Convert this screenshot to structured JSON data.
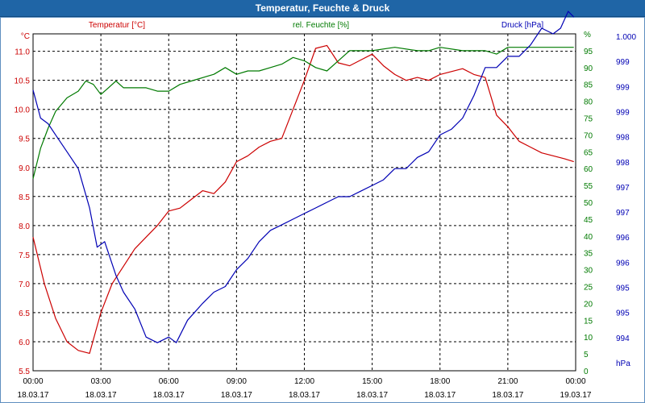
{
  "window": {
    "title": "Temperatur, Feuchte & Druck"
  },
  "colors": {
    "temperature": "#cc0000",
    "humidity": "#007a00",
    "pressure": "#0000b4",
    "titlebar": "#1f65a6",
    "grid": "#000000"
  },
  "chart_data": {
    "type": "line",
    "title": "Temperatur, Feuchte & Druck",
    "grid": true,
    "x": {
      "range": [
        "18.03.17 00:00",
        "19.03.17 00:00"
      ],
      "ticks": [
        {
          "time": "00:00",
          "date": "18.03.17"
        },
        {
          "time": "03:00",
          "date": "18.03.17"
        },
        {
          "time": "06:00",
          "date": "18.03.17"
        },
        {
          "time": "09:00",
          "date": "18.03.17"
        },
        {
          "time": "12:00",
          "date": "18.03.17"
        },
        {
          "time": "15:00",
          "date": "18.03.17"
        },
        {
          "time": "18:00",
          "date": "18.03.17"
        },
        {
          "time": "21:00",
          "date": "18.03.17"
        },
        {
          "time": "00:00",
          "date": "19.03.17"
        }
      ]
    },
    "axes": {
      "temperature": {
        "label": "Temperatur [°C]",
        "unit": "°C",
        "side": "left",
        "ylim": [
          5.5,
          11.3
        ],
        "ticks": [
          "11.0",
          "10.5",
          "10.0",
          "9.5",
          "9.0",
          "8.5",
          "8.0",
          "7.5",
          "7.0",
          "6.5",
          "6.0",
          "5.5"
        ]
      },
      "humidity": {
        "label": "rel. Feuchte [%]",
        "unit": "%",
        "side": "right-inner",
        "ylim": [
          0,
          100
        ],
        "ticks": [
          "0",
          "5",
          "10",
          "15",
          "20",
          "25",
          "30",
          "35",
          "40",
          "45",
          "50",
          "55",
          "60",
          "65",
          "70",
          "75",
          "80",
          "85",
          "90",
          "95",
          "%"
        ]
      },
      "pressure": {
        "label": "Druck [hPa]",
        "unit": "hPa",
        "side": "right-outer",
        "ylim": [
          994,
          1000
        ],
        "ticks": [
          "1.000",
          "999",
          "999",
          "999",
          "998",
          "998",
          "997",
          "997",
          "996",
          "996",
          "995",
          "995",
          "994",
          "hPa"
        ]
      }
    },
    "series": [
      {
        "name": "Temperatur [°C]",
        "axis": "temperature",
        "points": [
          [
            "18.03.17 00:00",
            7.8
          ],
          [
            "18.03.17 00:30",
            7.0
          ],
          [
            "18.03.17 01:00",
            6.4
          ],
          [
            "18.03.17 01:30",
            6.0
          ],
          [
            "18.03.17 02:00",
            5.85
          ],
          [
            "18.03.17 02:30",
            5.8
          ],
          [
            "18.03.17 03:00",
            6.5
          ],
          [
            "18.03.17 03:30",
            7.0
          ],
          [
            "18.03.17 04:00",
            7.3
          ],
          [
            "18.03.17 04:30",
            7.6
          ],
          [
            "18.03.17 05:00",
            7.8
          ],
          [
            "18.03.17 05:30",
            8.0
          ],
          [
            "18.03.17 06:00",
            8.25
          ],
          [
            "18.03.17 06:30",
            8.3
          ],
          [
            "18.03.17 07:00",
            8.45
          ],
          [
            "18.03.17 07:30",
            8.6
          ],
          [
            "18.03.17 08:00",
            8.55
          ],
          [
            "18.03.17 08:30",
            8.75
          ],
          [
            "18.03.17 09:00",
            9.1
          ],
          [
            "18.03.17 09:30",
            9.2
          ],
          [
            "18.03.17 10:00",
            9.35
          ],
          [
            "18.03.17 10:30",
            9.45
          ],
          [
            "18.03.17 11:00",
            9.5
          ],
          [
            "18.03.17 11:30",
            10.0
          ],
          [
            "18.03.17 12:00",
            10.5
          ],
          [
            "18.03.17 12:30",
            11.05
          ],
          [
            "18.03.17 13:00",
            11.1
          ],
          [
            "18.03.17 13:30",
            10.8
          ],
          [
            "18.03.17 14:00",
            10.75
          ],
          [
            "18.03.17 14:30",
            10.85
          ],
          [
            "18.03.17 15:00",
            10.95
          ],
          [
            "18.03.17 15:30",
            10.75
          ],
          [
            "18.03.17 16:00",
            10.6
          ],
          [
            "18.03.17 16:30",
            10.5
          ],
          [
            "18.03.17 17:00",
            10.55
          ],
          [
            "18.03.17 17:30",
            10.5
          ],
          [
            "18.03.17 18:00",
            10.6
          ],
          [
            "18.03.17 18:30",
            10.65
          ],
          [
            "18.03.17 19:00",
            10.7
          ],
          [
            "18.03.17 19:30",
            10.6
          ],
          [
            "18.03.17 20:00",
            10.55
          ],
          [
            "18.03.17 20:30",
            9.9
          ],
          [
            "18.03.17 21:00",
            9.7
          ],
          [
            "18.03.17 21:30",
            9.45
          ],
          [
            "18.03.17 22:00",
            9.35
          ],
          [
            "18.03.17 22:30",
            9.25
          ],
          [
            "18.03.17 23:00",
            9.2
          ],
          [
            "18.03.17 23:30",
            9.15
          ],
          [
            "18.03.17 23:55",
            9.1
          ]
        ]
      },
      {
        "name": "rel. Feuchte [%]",
        "axis": "humidity",
        "points": [
          [
            "18.03.17 00:00",
            57
          ],
          [
            "18.03.17 00:20",
            66
          ],
          [
            "18.03.17 00:40",
            72
          ],
          [
            "18.03.17 01:00",
            77
          ],
          [
            "18.03.17 01:30",
            81
          ],
          [
            "18.03.17 02:00",
            83
          ],
          [
            "18.03.17 02:20",
            86
          ],
          [
            "18.03.17 02:40",
            85
          ],
          [
            "18.03.17 03:00",
            82
          ],
          [
            "18.03.17 03:20",
            84
          ],
          [
            "18.03.17 03:40",
            86
          ],
          [
            "18.03.17 04:00",
            84
          ],
          [
            "18.03.17 05:00",
            84
          ],
          [
            "18.03.17 05:30",
            83
          ],
          [
            "18.03.17 06:00",
            83
          ],
          [
            "18.03.17 06:30",
            85
          ],
          [
            "18.03.17 07:00",
            86
          ],
          [
            "18.03.17 08:00",
            88
          ],
          [
            "18.03.17 08:30",
            90
          ],
          [
            "18.03.17 09:00",
            88
          ],
          [
            "18.03.17 09:30",
            89
          ],
          [
            "18.03.17 10:00",
            89
          ],
          [
            "18.03.17 10:30",
            90
          ],
          [
            "18.03.17 11:00",
            91
          ],
          [
            "18.03.17 11:30",
            93
          ],
          [
            "18.03.17 12:00",
            92
          ],
          [
            "18.03.17 12:30",
            90
          ],
          [
            "18.03.17 13:00",
            89
          ],
          [
            "18.03.17 13:30",
            92
          ],
          [
            "18.03.17 14:00",
            95
          ],
          [
            "18.03.17 15:00",
            95
          ],
          [
            "18.03.17 16:00",
            96
          ],
          [
            "18.03.17 17:00",
            95
          ],
          [
            "18.03.17 17:30",
            95
          ],
          [
            "18.03.17 18:00",
            96
          ],
          [
            "18.03.17 19:00",
            95
          ],
          [
            "18.03.17 20:00",
            95
          ],
          [
            "18.03.17 20:30",
            94
          ],
          [
            "18.03.17 21:00",
            96
          ],
          [
            "18.03.17 22:00",
            96
          ],
          [
            "18.03.17 23:00",
            96
          ],
          [
            "18.03.17 23:55",
            96
          ]
        ]
      },
      {
        "name": "Druck [hPa]",
        "axis": "pressure",
        "points": [
          [
            "18.03.17 00:00",
            999.0
          ],
          [
            "18.03.17 00:20",
            998.5
          ],
          [
            "18.03.17 00:40",
            998.4
          ],
          [
            "18.03.17 01:00",
            998.2
          ],
          [
            "18.03.17 01:30",
            997.9
          ],
          [
            "18.03.17 02:00",
            997.6
          ],
          [
            "18.03.17 02:30",
            996.9
          ],
          [
            "18.03.17 02:50",
            996.2
          ],
          [
            "18.03.17 03:10",
            996.3
          ],
          [
            "18.03.17 03:40",
            995.7
          ],
          [
            "18.03.17 04:00",
            995.4
          ],
          [
            "18.03.17 04:30",
            995.1
          ],
          [
            "18.03.17 05:00",
            994.6
          ],
          [
            "18.03.17 05:30",
            994.5
          ],
          [
            "18.03.17 06:00",
            994.6
          ],
          [
            "18.03.17 06:20",
            994.5
          ],
          [
            "18.03.17 06:50",
            994.9
          ],
          [
            "18.03.17 07:30",
            995.2
          ],
          [
            "18.03.17 08:00",
            995.4
          ],
          [
            "18.03.17 08:30",
            995.5
          ],
          [
            "18.03.17 09:00",
            995.8
          ],
          [
            "18.03.17 09:30",
            996.0
          ],
          [
            "18.03.17 10:00",
            996.3
          ],
          [
            "18.03.17 10:30",
            996.5
          ],
          [
            "18.03.17 11:00",
            996.6
          ],
          [
            "18.03.17 11:30",
            996.7
          ],
          [
            "18.03.17 12:00",
            996.8
          ],
          [
            "18.03.17 12:30",
            996.9
          ],
          [
            "18.03.17 13:00",
            997.0
          ],
          [
            "18.03.17 13:30",
            997.1
          ],
          [
            "18.03.17 14:00",
            997.1
          ],
          [
            "18.03.17 14:30",
            997.2
          ],
          [
            "18.03.17 15:00",
            997.3
          ],
          [
            "18.03.17 15:30",
            997.4
          ],
          [
            "18.03.17 16:00",
            997.6
          ],
          [
            "18.03.17 16:30",
            997.6
          ],
          [
            "18.03.17 17:00",
            997.8
          ],
          [
            "18.03.17 17:30",
            997.9
          ],
          [
            "18.03.17 18:00",
            998.2
          ],
          [
            "18.03.17 18:30",
            998.3
          ],
          [
            "18.03.17 19:00",
            998.5
          ],
          [
            "18.03.17 19:30",
            998.9
          ],
          [
            "18.03.17 20:00",
            999.4
          ],
          [
            "18.03.17 20:30",
            999.4
          ],
          [
            "18.03.17 21:00",
            999.6
          ],
          [
            "18.03.17 21:30",
            999.6
          ],
          [
            "18.03.17 22:00",
            999.8
          ],
          [
            "18.03.17 22:30",
            1000.1
          ],
          [
            "18.03.17 23:00",
            1000.0
          ],
          [
            "18.03.17 23:20",
            1000.1
          ],
          [
            "18.03.17 23:40",
            1000.4
          ],
          [
            "18.03.17 23:55",
            1000.3
          ]
        ]
      }
    ]
  }
}
